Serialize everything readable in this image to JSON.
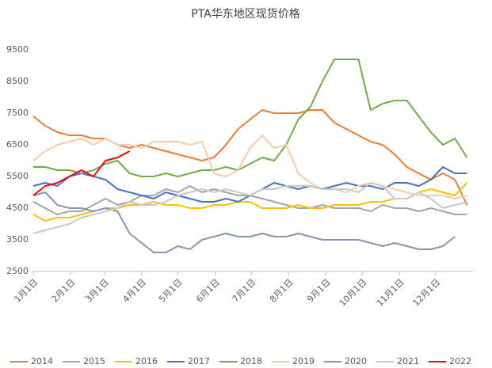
{
  "chart_data": {
    "type": "line",
    "title": "PTA华东地区现货价格",
    "x": [
      0,
      10,
      20,
      30,
      40,
      50,
      60,
      70,
      80,
      90,
      100,
      110,
      120,
      130,
      140,
      150,
      160,
      170,
      180,
      190,
      200,
      210,
      220,
      230,
      240,
      250,
      260,
      270,
      280,
      290,
      300,
      310,
      320,
      330,
      340,
      350,
      360
    ],
    "xlim": [
      0,
      365
    ],
    "xticks": [
      {
        "value": 0,
        "label": "1月1日"
      },
      {
        "value": 31,
        "label": "2月1日"
      },
      {
        "value": 59,
        "label": "3月1日"
      },
      {
        "value": 90,
        "label": "4月1日"
      },
      {
        "value": 120,
        "label": "5月1日"
      },
      {
        "value": 151,
        "label": "6月1日"
      },
      {
        "value": 181,
        "label": "7月1日"
      },
      {
        "value": 212,
        "label": "8月1日"
      },
      {
        "value": 243,
        "label": "9月1日"
      },
      {
        "value": 273,
        "label": "10月1日"
      },
      {
        "value": 304,
        "label": "11月1日"
      },
      {
        "value": 334,
        "label": "12月1日"
      }
    ],
    "ylim": [
      2500,
      9500
    ],
    "yticks": [
      2500,
      3500,
      4500,
      5500,
      6500,
      7500,
      8500,
      9500
    ],
    "grid": false,
    "series": [
      {
        "name": "2014",
        "color": "#ed7d31",
        "values": [
          7400,
          7100,
          6900,
          6800,
          6800,
          6700,
          6700,
          6500,
          6400,
          6500,
          6400,
          6300,
          6200,
          6100,
          6000,
          6100,
          6500,
          7000,
          7300,
          7600,
          7500,
          7500,
          7500,
          7600,
          7600,
          7200,
          7000,
          6800,
          6600,
          6500,
          6200,
          5800,
          5600,
          5400,
          5600,
          5400,
          4600
        ]
      },
      {
        "name": "2015",
        "color": "#a5a5a5",
        "values": [
          4700,
          4500,
          4300,
          4400,
          4400,
          4600,
          4800,
          4600,
          4700,
          4900,
          4900,
          5100,
          5000,
          5200,
          5000,
          5100,
          5000,
          4900,
          4900,
          4800,
          4700,
          4600,
          4500,
          4500,
          4600,
          4500,
          4500,
          4500,
          4400,
          4600,
          4500,
          4500,
          4400,
          4500,
          4400,
          4300,
          4300
        ]
      },
      {
        "name": "2016",
        "color": "#ffc000",
        "values": [
          4300,
          4100,
          4200,
          4200,
          4300,
          4400,
          4500,
          4500,
          4600,
          4600,
          4700,
          4600,
          4600,
          4500,
          4500,
          4600,
          4600,
          4700,
          4700,
          4500,
          4500,
          4500,
          4600,
          4500,
          4500,
          4600,
          4600,
          4600,
          4700,
          4700,
          4800,
          4800,
          5000,
          5100,
          5000,
          4900,
          5300
        ]
      },
      {
        "name": "2017",
        "color": "#4472c4",
        "values": [
          5200,
          5300,
          5200,
          5500,
          5600,
          5500,
          5400,
          5100,
          5000,
          4900,
          4800,
          5000,
          4900,
          4800,
          4700,
          4700,
          4800,
          4700,
          4900,
          5100,
          5300,
          5200,
          5100,
          5200,
          5100,
          5200,
          5300,
          5200,
          5200,
          5100,
          5300,
          5300,
          5200,
          5400,
          5800,
          5600,
          5600
        ]
      },
      {
        "name": "2018",
        "color": "#70ad47",
        "values": [
          5800,
          5800,
          5700,
          5700,
          5600,
          5700,
          5900,
          6000,
          5600,
          5500,
          5500,
          5600,
          5500,
          5600,
          5700,
          5700,
          5800,
          5700,
          5900,
          6100,
          6000,
          6500,
          7300,
          7700,
          8500,
          9200,
          9200,
          9200,
          7600,
          7800,
          7900,
          7900,
          7400,
          6900,
          6500,
          6700,
          6100
        ]
      },
      {
        "name": "2019",
        "color": "#f8cbad",
        "values": [
          6000,
          6300,
          6500,
          6600,
          6700,
          6500,
          6700,
          6500,
          6500,
          6400,
          6600,
          6600,
          6600,
          6500,
          6600,
          5600,
          5500,
          5700,
          6400,
          6800,
          6400,
          6500,
          5600,
          5300,
          5100,
          5100,
          5000,
          5200,
          5300,
          5200,
          5100,
          5000,
          4900,
          4900,
          4900,
          4800,
          4900
        ]
      },
      {
        "name": "2020",
        "color": "#8497b0",
        "values": [
          4900,
          5000,
          4600,
          4500,
          4500,
          4400,
          4500,
          4400,
          3700,
          3400,
          3100,
          3100,
          3300,
          3200,
          3500,
          3600,
          3700,
          3600,
          3600,
          3700,
          3600,
          3600,
          3700,
          3600,
          3500,
          3500,
          3500,
          3500,
          3400,
          3300,
          3400,
          3300,
          3200,
          3200,
          3300,
          3600,
          null
        ]
      },
      {
        "name": "2021",
        "color": "#c9c9c9",
        "values": [
          3700,
          3800,
          3900,
          4000,
          4200,
          4300,
          4400,
          4500,
          4700,
          4600,
          4600,
          4700,
          4900,
          5000,
          5100,
          5000,
          5100,
          5000,
          4900,
          5100,
          5100,
          5200,
          5200,
          5200,
          5100,
          5100,
          5100,
          5000,
          5300,
          5200,
          4800,
          4800,
          5000,
          4800,
          4500,
          4600,
          4700
        ]
      },
      {
        "name": "2022",
        "color": "#ff0000",
        "values": [
          4900,
          5200,
          5300,
          5500,
          5700,
          5500,
          6000,
          6100,
          6300,
          null,
          null,
          null,
          null,
          null,
          null,
          null,
          null,
          null,
          null,
          null,
          null,
          null,
          null,
          null,
          null,
          null,
          null,
          null,
          null,
          null,
          null,
          null,
          null,
          null,
          null,
          null,
          null
        ]
      }
    ]
  }
}
